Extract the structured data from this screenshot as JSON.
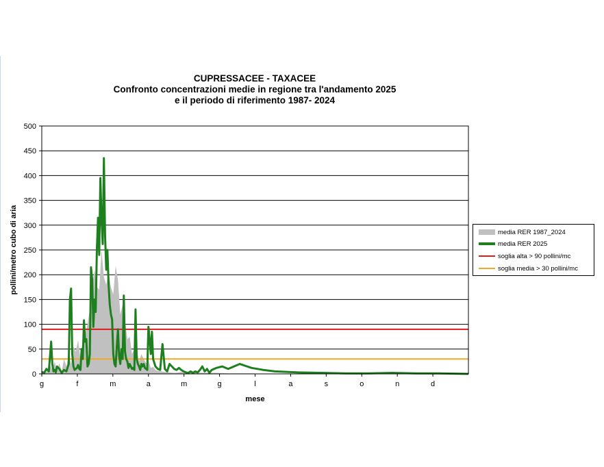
{
  "chart_data": {
    "type": "area",
    "title": [
      "CUPRESSACEE - TAXACEE",
      "Confronto concentrazioni medie in regione tra l'andamento 2025",
      "e il periodo di riferimento 1987- 2024"
    ],
    "ylabel": "pollini/metro cubo di aria",
    "xlabel": "mese",
    "ylim": [
      0,
      500
    ],
    "yticks": [
      0,
      50,
      100,
      150,
      200,
      250,
      300,
      350,
      400,
      450,
      500
    ],
    "xlim": [
      1,
      365
    ],
    "month_labels": [
      "g",
      "f",
      "m",
      "a",
      "m",
      "g",
      "l",
      "a",
      "s",
      "o",
      "n",
      "d"
    ],
    "grid": true,
    "legend_position": "right",
    "series": [
      {
        "name": "media RER 1987_2024",
        "kind": "area",
        "color": "#c0c0c0",
        "x": [
          1,
          5,
          8,
          10,
          12,
          14,
          16,
          18,
          20,
          22,
          24,
          26,
          28,
          30,
          32,
          34,
          36,
          38,
          40,
          42,
          44,
          46,
          48,
          50,
          52,
          54,
          56,
          58,
          60,
          62,
          64,
          66,
          68,
          70,
          72,
          74,
          76,
          78,
          80,
          82,
          84,
          86,
          88,
          90,
          92,
          94,
          96,
          98,
          100,
          103,
          106,
          110,
          115,
          120,
          130,
          140,
          150,
          160,
          170,
          180,
          190,
          200,
          220,
          250,
          280,
          310,
          340,
          365
        ],
        "values": [
          2,
          4,
          18,
          8,
          25,
          6,
          22,
          5,
          30,
          15,
          40,
          20,
          55,
          45,
          68,
          30,
          70,
          80,
          100,
          130,
          180,
          210,
          175,
          170,
          250,
          195,
          180,
          205,
          175,
          160,
          218,
          190,
          120,
          140,
          110,
          70,
          75,
          40,
          50,
          48,
          25,
          40,
          30,
          22,
          28,
          12,
          14,
          8,
          6,
          5,
          4,
          3,
          2,
          4,
          3,
          2,
          2,
          1,
          1,
          1,
          0,
          0,
          0,
          0,
          0,
          0,
          0,
          0
        ]
      },
      {
        "name": "media RER 2025",
        "kind": "line",
        "color": "#1e7f1e",
        "x": [
          1,
          3,
          5,
          7,
          9,
          10,
          11,
          12,
          13,
          14,
          16,
          18,
          20,
          22,
          24,
          25,
          26,
          27,
          28,
          29,
          30,
          31,
          32,
          33,
          34,
          35,
          36,
          37,
          38,
          39,
          40,
          41,
          42,
          43,
          44,
          45,
          46,
          47,
          48,
          49,
          50,
          51,
          52,
          53,
          54,
          55,
          56,
          57,
          58,
          59,
          60,
          61,
          62,
          63,
          64,
          65,
          66,
          67,
          68,
          69,
          70,
          71,
          72,
          73,
          74,
          75,
          76,
          77,
          78,
          79,
          80,
          81,
          82,
          83,
          84,
          85,
          86,
          87,
          88,
          89,
          90,
          91,
          92,
          93,
          94,
          95,
          96,
          98,
          100,
          102,
          104,
          106,
          108,
          110,
          112,
          114,
          116,
          118,
          120,
          122,
          124,
          126,
          128,
          130,
          132,
          134,
          136,
          138,
          140,
          142,
          144,
          146,
          148,
          150,
          155,
          160,
          170,
          180,
          190,
          200,
          220,
          240,
          260,
          280,
          300,
          320,
          340,
          365
        ],
        "values": [
          4,
          2,
          10,
          5,
          65,
          20,
          5,
          8,
          3,
          15,
          10,
          2,
          8,
          5,
          20,
          150,
          172,
          40,
          15,
          8,
          10,
          12,
          18,
          10,
          8,
          50,
          30,
          108,
          65,
          70,
          15,
          20,
          40,
          215,
          190,
          95,
          150,
          125,
          250,
          315,
          240,
          395,
          310,
          262,
          435,
          280,
          210,
          250,
          180,
          140,
          120,
          110,
          40,
          20,
          15,
          55,
          90,
          35,
          20,
          50,
          30,
          158,
          45,
          30,
          25,
          12,
          20,
          15,
          10,
          12,
          8,
          130,
          30,
          20,
          15,
          8,
          20,
          15,
          20,
          12,
          10,
          8,
          95,
          70,
          40,
          85,
          30,
          15,
          10,
          8,
          60,
          10,
          5,
          20,
          15,
          10,
          8,
          12,
          8,
          5,
          3,
          2,
          5,
          2,
          5,
          3,
          8,
          15,
          5,
          10,
          2,
          8,
          10,
          12,
          15,
          10,
          20,
          12,
          8,
          5,
          3,
          2,
          1,
          1,
          2,
          1,
          1,
          0
        ]
      }
    ],
    "thresholds": [
      {
        "name": "soglia alta > 90 pollini/mc",
        "value": 90,
        "color": "#e31a1c"
      },
      {
        "name": "soglia media > 30 pollini/mc",
        "value": 30,
        "color": "#f5a623"
      }
    ]
  }
}
